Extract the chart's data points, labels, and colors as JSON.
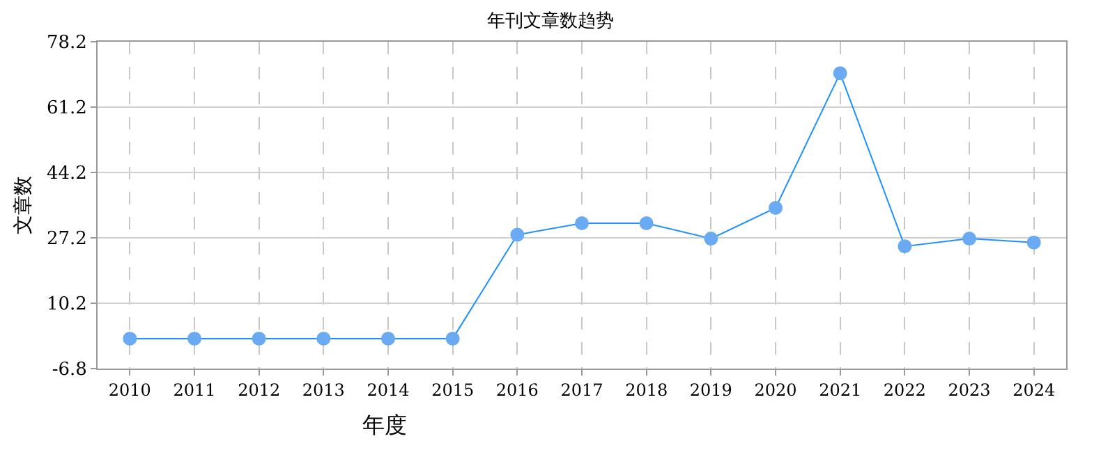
{
  "chart_data": {
    "type": "line",
    "title": "年刊文章数趋势",
    "xlabel": "年度",
    "ylabel": "文章数",
    "categories": [
      "2010",
      "2011",
      "2012",
      "2013",
      "2014",
      "2015",
      "2016",
      "2017",
      "2018",
      "2019",
      "2020",
      "2021",
      "2022",
      "2023",
      "2024"
    ],
    "series": [
      {
        "color": "#1e90ff",
        "values": [
          1,
          1,
          1,
          1,
          1,
          1,
          28,
          31,
          31,
          27,
          35,
          70,
          25,
          27,
          26
        ]
      }
    ],
    "ylim": [
      -6.8,
      78.2
    ],
    "yticks": [
      -6.8,
      10.2,
      27.2,
      44.2,
      61.2,
      78.2
    ],
    "grid": true,
    "marker": "circle",
    "line_style": "solid",
    "legend": false
  }
}
